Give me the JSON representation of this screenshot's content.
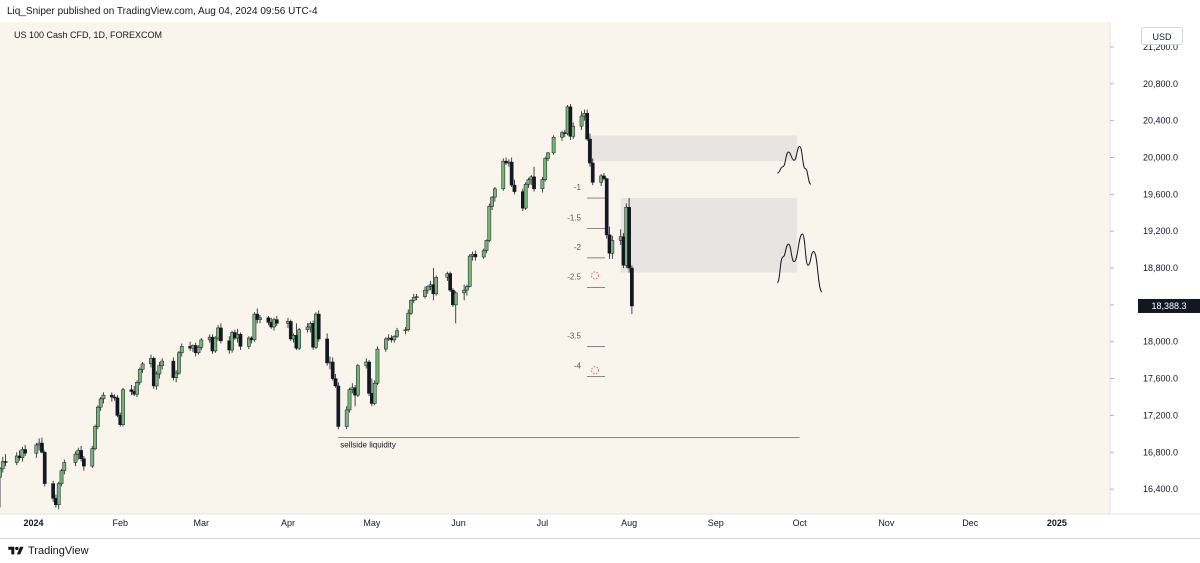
{
  "header": {
    "text": "Liq_Sniper published on TradingView.com, Aug 04, 2024 09:56 UTC-4"
  },
  "symbol": "US 100 Cash CFD, 1D, FOREXCOM",
  "currency": "USD",
  "footer": {
    "brand": "TradingView"
  },
  "colors": {
    "up": "#77b376",
    "down": "#131722",
    "background": "#f9f5ed",
    "zone": "#e7e4e1",
    "liquidity_line": "#e06666",
    "price_label_bg": "#131722"
  },
  "chart_data": {
    "type": "candlestick",
    "x_ticks": [
      "2024",
      "Feb",
      "Mar",
      "Apr",
      "May",
      "Jun",
      "Jul",
      "Aug",
      "Sep",
      "Oct",
      "Nov",
      "Dec",
      "2025"
    ],
    "y_ticks": [
      "21,200.0",
      "20,800.0",
      "20,400.0",
      "20,000.0",
      "19,600.0",
      "19,200.0",
      "18,800.0",
      "18,400.0",
      "18,000.0",
      "17,600.0",
      "17,200.0",
      "16,800.0",
      "16,400.0"
    ],
    "ylim": [
      16130,
      21460
    ],
    "xlim": [
      "2023-12-20",
      "2025-01-20"
    ],
    "last_price": {
      "value": 18388.3,
      "label": "18,388.3"
    },
    "candles": [
      [
        "2023-12-20",
        16530,
        16640,
        16200,
        16620
      ],
      [
        "2023-12-21",
        16620,
        16750,
        16580,
        16700
      ],
      [
        "2023-12-22",
        16700,
        16780,
        16650,
        16690
      ],
      [
        "2023-12-26",
        16690,
        16800,
        16660,
        16760
      ],
      [
        "2023-12-27",
        16760,
        16820,
        16710,
        16740
      ],
      [
        "2023-12-28",
        16740,
        16860,
        16700,
        16830
      ],
      [
        "2023-12-29",
        16830,
        16880,
        16760,
        16790
      ],
      [
        "2024-01-02",
        16790,
        16900,
        16740,
        16880
      ],
      [
        "2024-01-03",
        16880,
        16950,
        16820,
        16900
      ],
      [
        "2024-01-04",
        16900,
        16960,
        16790,
        16800
      ],
      [
        "2024-01-05",
        16800,
        16820,
        16430,
        16460
      ],
      [
        "2024-01-08",
        16460,
        16490,
        16260,
        16300
      ],
      [
        "2024-01-09",
        16300,
        16340,
        16200,
        16230
      ],
      [
        "2024-01-10",
        16230,
        16480,
        16180,
        16460
      ],
      [
        "2024-01-11",
        16460,
        16620,
        16430,
        16600
      ],
      [
        "2024-01-12",
        16600,
        16720,
        16560,
        16690
      ],
      [
        "2024-01-16",
        16690,
        16810,
        16650,
        16780
      ],
      [
        "2024-01-17",
        16780,
        16850,
        16720,
        16820
      ],
      [
        "2024-01-18",
        16820,
        16870,
        16700,
        16730
      ],
      [
        "2024-01-19",
        16730,
        16760,
        16600,
        16650
      ],
      [
        "2024-01-22",
        16650,
        16870,
        16630,
        16840
      ],
      [
        "2024-01-23",
        16840,
        17100,
        16820,
        17080
      ],
      [
        "2024-01-24",
        17080,
        17310,
        17050,
        17290
      ],
      [
        "2024-01-25",
        17290,
        17400,
        17250,
        17380
      ],
      [
        "2024-01-26",
        17380,
        17450,
        17330,
        17420
      ],
      [
        "2024-01-29",
        17420,
        17450,
        17350,
        17400
      ],
      [
        "2024-01-30",
        17400,
        17430,
        17360,
        17390
      ],
      [
        "2024-01-31",
        17390,
        17420,
        17180,
        17200
      ],
      [
        "2024-02-01",
        17200,
        17230,
        17080,
        17100
      ],
      [
        "2024-02-02",
        17100,
        17500,
        17080,
        17480
      ],
      [
        "2024-02-05",
        17480,
        17530,
        17420,
        17460
      ],
      [
        "2024-02-06",
        17460,
        17520,
        17410,
        17430
      ],
      [
        "2024-02-07",
        17430,
        17580,
        17400,
        17560
      ],
      [
        "2024-02-08",
        17560,
        17720,
        17530,
        17700
      ],
      [
        "2024-02-09",
        17700,
        17780,
        17660,
        17760
      ],
      [
        "2024-02-12",
        17760,
        17860,
        17720,
        17820
      ],
      [
        "2024-02-13",
        17820,
        17840,
        17490,
        17520
      ],
      [
        "2024-02-14",
        17520,
        17680,
        17480,
        17650
      ],
      [
        "2024-02-15",
        17650,
        17780,
        17600,
        17740
      ],
      [
        "2024-02-16",
        17740,
        17820,
        17700,
        17790
      ],
      [
        "2024-02-20",
        17790,
        17830,
        17580,
        17610
      ],
      [
        "2024-02-21",
        17610,
        17690,
        17560,
        17660
      ],
      [
        "2024-02-22",
        17660,
        17900,
        17640,
        17880
      ],
      [
        "2024-02-23",
        17880,
        17980,
        17840,
        17950
      ],
      [
        "2024-02-26",
        17950,
        18000,
        17900,
        17930
      ],
      [
        "2024-02-27",
        17930,
        17970,
        17890,
        17960
      ],
      [
        "2024-02-28",
        17960,
        17990,
        17840,
        17880
      ],
      [
        "2024-02-29",
        17880,
        17960,
        17860,
        17940
      ],
      [
        "2024-03-01",
        17940,
        18040,
        17910,
        18020
      ],
      [
        "2024-03-04",
        18020,
        18080,
        17990,
        18050
      ],
      [
        "2024-03-05",
        18050,
        18080,
        17870,
        17900
      ],
      [
        "2024-03-06",
        17900,
        18060,
        17880,
        18040
      ],
      [
        "2024-03-07",
        18040,
        18180,
        18010,
        18150
      ],
      [
        "2024-03-08",
        18150,
        18200,
        17980,
        18010
      ],
      [
        "2024-03-11",
        18010,
        18060,
        17870,
        17910
      ],
      [
        "2024-03-12",
        17910,
        18120,
        17880,
        18100
      ],
      [
        "2024-03-13",
        18100,
        18130,
        18020,
        18040
      ],
      [
        "2024-03-14",
        18040,
        18140,
        17990,
        18080
      ],
      [
        "2024-03-15",
        18080,
        18100,
        17910,
        17950
      ],
      [
        "2024-03-18",
        17950,
        18060,
        17920,
        18040
      ],
      [
        "2024-03-19",
        18040,
        18060,
        17980,
        18020
      ],
      [
        "2024-03-20",
        18020,
        18320,
        18000,
        18300
      ],
      [
        "2024-03-21",
        18300,
        18360,
        18200,
        18240
      ],
      [
        "2024-03-22",
        18240,
        18290,
        18200,
        18260
      ],
      [
        "2024-03-25",
        18260,
        18280,
        18180,
        18210
      ],
      [
        "2024-03-26",
        18210,
        18260,
        18140,
        18160
      ],
      [
        "2024-03-27",
        18160,
        18260,
        18120,
        18240
      ],
      [
        "2024-03-28",
        18240,
        18280,
        18170,
        18200
      ],
      [
        "2024-04-01",
        18200,
        18260,
        18150,
        18220
      ],
      [
        "2024-04-02",
        18220,
        18240,
        18010,
        18030
      ],
      [
        "2024-04-03",
        18030,
        18090,
        17990,
        18070
      ],
      [
        "2024-04-04",
        18070,
        18200,
        17910,
        17930
      ],
      [
        "2024-04-05",
        17930,
        18150,
        17910,
        18130
      ],
      [
        "2024-04-08",
        18130,
        18200,
        18100,
        18160
      ],
      [
        "2024-04-09",
        18160,
        18220,
        18100,
        18200
      ],
      [
        "2024-04-10",
        18200,
        18230,
        17910,
        17940
      ],
      [
        "2024-04-11",
        17940,
        18320,
        17920,
        18300
      ],
      [
        "2024-04-12",
        18300,
        18340,
        18000,
        18030
      ],
      [
        "2024-04-15",
        18030,
        18090,
        17740,
        17770
      ],
      [
        "2024-04-16",
        17770,
        17840,
        17700,
        17780
      ],
      [
        "2024-04-17",
        17780,
        17830,
        17580,
        17600
      ],
      [
        "2024-04-18",
        17600,
        17650,
        17500,
        17520
      ],
      [
        "2024-04-19",
        17520,
        17560,
        17050,
        17080
      ],
      [
        "2024-04-22",
        17080,
        17300,
        17050,
        17260
      ],
      [
        "2024-04-23",
        17260,
        17500,
        17230,
        17480
      ],
      [
        "2024-04-24",
        17480,
        17550,
        17440,
        17500
      ],
      [
        "2024-04-25",
        17500,
        17530,
        17300,
        17420
      ],
      [
        "2024-04-26",
        17420,
        17760,
        17400,
        17740
      ],
      [
        "2024-04-29",
        17740,
        17820,
        17710,
        17780
      ],
      [
        "2024-04-30",
        17780,
        17800,
        17410,
        17440
      ],
      [
        "2024-05-01",
        17440,
        17600,
        17300,
        17330
      ],
      [
        "2024-05-02",
        17330,
        17580,
        17310,
        17550
      ],
      [
        "2024-05-03",
        17550,
        17950,
        17530,
        17920
      ],
      [
        "2024-05-06",
        17920,
        18050,
        17890,
        18030
      ],
      [
        "2024-05-07",
        18030,
        18080,
        18010,
        18040
      ],
      [
        "2024-05-08",
        18040,
        18070,
        17990,
        18020
      ],
      [
        "2024-05-09",
        18020,
        18070,
        17990,
        18060
      ],
      [
        "2024-05-10",
        18060,
        18150,
        18040,
        18120
      ],
      [
        "2024-05-13",
        18120,
        18160,
        18080,
        18130
      ],
      [
        "2024-05-14",
        18130,
        18350,
        18110,
        18310
      ],
      [
        "2024-05-15",
        18310,
        18460,
        18290,
        18450
      ],
      [
        "2024-05-16",
        18450,
        18520,
        18420,
        18480
      ],
      [
        "2024-05-17",
        18480,
        18520,
        18450,
        18490
      ],
      [
        "2024-05-20",
        18490,
        18600,
        18470,
        18560
      ],
      [
        "2024-05-21",
        18560,
        18610,
        18520,
        18600
      ],
      [
        "2024-05-22",
        18600,
        18660,
        18560,
        18620
      ],
      [
        "2024-05-23",
        18620,
        18800,
        18450,
        18520
      ],
      [
        "2024-05-24",
        18520,
        18720,
        18500,
        18700
      ],
      [
        "2024-05-28",
        18700,
        18760,
        18660,
        18740
      ],
      [
        "2024-05-29",
        18740,
        18760,
        18540,
        18560
      ],
      [
        "2024-05-30",
        18560,
        18580,
        18380,
        18400
      ],
      [
        "2024-05-31",
        18400,
        18550,
        18200,
        18530
      ],
      [
        "2024-06-03",
        18530,
        18620,
        18450,
        18560
      ],
      [
        "2024-06-04",
        18560,
        18620,
        18500,
        18600
      ],
      [
        "2024-06-05",
        18600,
        18950,
        18590,
        18930
      ],
      [
        "2024-06-06",
        18930,
        18980,
        18880,
        18950
      ],
      [
        "2024-06-07",
        18950,
        18990,
        18880,
        18920
      ],
      [
        "2024-06-10",
        18920,
        19010,
        18900,
        18990
      ],
      [
        "2024-06-11",
        18990,
        19110,
        18960,
        19100
      ],
      [
        "2024-06-12",
        19100,
        19500,
        19080,
        19470
      ],
      [
        "2024-06-13",
        19470,
        19580,
        19430,
        19570
      ],
      [
        "2024-06-14",
        19570,
        19680,
        19520,
        19660
      ],
      [
        "2024-06-17",
        19660,
        19990,
        19640,
        19960
      ],
      [
        "2024-06-18",
        19960,
        20000,
        19920,
        19940
      ],
      [
        "2024-06-19",
        19940,
        19980,
        19900,
        19950
      ],
      [
        "2024-06-20",
        19950,
        20000,
        19680,
        19700
      ],
      [
        "2024-06-21",
        19700,
        19760,
        19600,
        19630
      ],
      [
        "2024-06-24",
        19630,
        19660,
        19420,
        19450
      ],
      [
        "2024-06-25",
        19450,
        19730,
        19430,
        19710
      ],
      [
        "2024-06-26",
        19710,
        19780,
        19670,
        19760
      ],
      [
        "2024-06-27",
        19760,
        19810,
        19700,
        19790
      ],
      [
        "2024-06-28",
        19790,
        19900,
        19630,
        19660
      ],
      [
        "2024-07-01",
        19660,
        19790,
        19620,
        19760
      ],
      [
        "2024-07-02",
        19760,
        20010,
        19740,
        19990
      ],
      [
        "2024-07-03",
        19990,
        20060,
        19960,
        20050
      ],
      [
        "2024-07-05",
        20050,
        20240,
        20030,
        20220
      ],
      [
        "2024-07-08",
        20220,
        20290,
        20180,
        20270
      ],
      [
        "2024-07-09",
        20270,
        20300,
        20220,
        20260
      ],
      [
        "2024-07-10",
        20260,
        20570,
        20240,
        20550
      ],
      [
        "2024-07-11",
        20550,
        20580,
        20190,
        20230
      ],
      [
        "2024-07-12",
        20230,
        20380,
        20200,
        20340
      ],
      [
        "2024-07-15",
        20340,
        20500,
        20300,
        20450
      ],
      [
        "2024-07-16",
        20450,
        20520,
        20400,
        20480
      ],
      [
        "2024-07-17",
        20480,
        20520,
        20180,
        20200
      ],
      [
        "2024-07-18",
        20200,
        20260,
        19900,
        19940
      ],
      [
        "2024-07-19",
        19940,
        19990,
        19700,
        19730
      ],
      [
        "2024-07-22",
        19730,
        19820,
        19690,
        19800
      ],
      [
        "2024-07-23",
        19800,
        19830,
        19750,
        19770
      ],
      [
        "2024-07-24",
        19770,
        19780,
        19120,
        19160
      ],
      [
        "2024-07-25",
        19160,
        19250,
        18900,
        18960
      ],
      [
        "2024-07-26",
        18960,
        19150,
        18900,
        19100
      ],
      [
        "2024-07-29",
        19100,
        19220,
        19050,
        19140
      ],
      [
        "2024-07-30",
        19140,
        19180,
        18800,
        18830
      ],
      [
        "2024-07-31",
        18830,
        19500,
        18800,
        19460
      ],
      [
        "2024-08-01",
        19460,
        19560,
        18750,
        18800
      ],
      [
        "2024-08-02",
        18800,
        18830,
        18300,
        18388.3
      ]
    ],
    "zones": [
      {
        "from": "2024-07-17",
        "to": "2024-09-30",
        "top": 20240,
        "bottom": 19960
      },
      {
        "from": "2024-07-29",
        "to": "2024-09-30",
        "top": 19560,
        "bottom": 18750
      }
    ],
    "liquidity_line": {
      "label": "sellside liquidity",
      "value": 16960,
      "from": "2024-04-19",
      "to": "2024-10-01"
    },
    "fib_levels": [
      {
        "label": "-1",
        "value": 19560
      },
      {
        "label": "-1.5",
        "value": 19230
      },
      {
        "label": "-2",
        "value": 18910
      },
      {
        "label": "-2.5",
        "value": 18590
      },
      {
        "label": "-3.5",
        "value": 17950
      },
      {
        "label": "-4",
        "value": 17620
      }
    ],
    "projections": [
      {
        "points": [
          [
            "2024-09-23",
            19830
          ],
          [
            "2024-09-25",
            19900
          ],
          [
            "2024-09-27",
            20060
          ],
          [
            "2024-09-29",
            19970
          ],
          [
            "2024-10-01",
            20120
          ],
          [
            "2024-10-03",
            19880
          ],
          [
            "2024-10-05",
            19710
          ]
        ]
      },
      {
        "points": [
          [
            "2024-09-23",
            18640
          ],
          [
            "2024-09-25",
            18920
          ],
          [
            "2024-09-27",
            19060
          ],
          [
            "2024-09-29",
            18870
          ],
          [
            "2024-10-02",
            19170
          ],
          [
            "2024-10-04",
            18830
          ],
          [
            "2024-10-06",
            18980
          ],
          [
            "2024-10-09",
            18540
          ]
        ]
      }
    ]
  }
}
